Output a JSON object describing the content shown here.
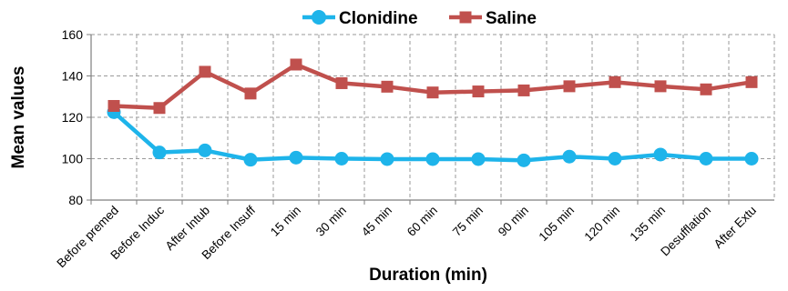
{
  "chart_data": {
    "type": "line",
    "title": "",
    "xlabel": "Duration (min)",
    "ylabel": "Mean values",
    "ylim": [
      80,
      160
    ],
    "yticks": [
      80,
      100,
      120,
      140,
      160
    ],
    "grid": "dashed, both axes",
    "legend_position": "top-center",
    "categories": [
      "Before premed",
      "Before Induc",
      "After Intub",
      "Before Insuff",
      "15 min",
      "30 min",
      "45 min",
      "60 min",
      "75 min",
      "90 min",
      "105 min",
      "120 min",
      "135 min",
      "Desufflation",
      "After Extu"
    ],
    "series": [
      {
        "name": "Clonidine",
        "color": "#1EB4EA",
        "marker": "circle",
        "values": [
          122.5,
          103,
          104,
          99.5,
          100.5,
          100,
          99.8,
          99.8,
          99.8,
          99.2,
          101,
          100,
          102,
          100,
          100
        ]
      },
      {
        "name": "Saline",
        "color": "#C0504D",
        "marker": "square",
        "values": [
          125.5,
          124.5,
          142,
          131.5,
          145.5,
          136.5,
          134.8,
          132,
          132.5,
          133,
          135,
          137,
          135,
          133.5,
          137
        ]
      }
    ]
  }
}
